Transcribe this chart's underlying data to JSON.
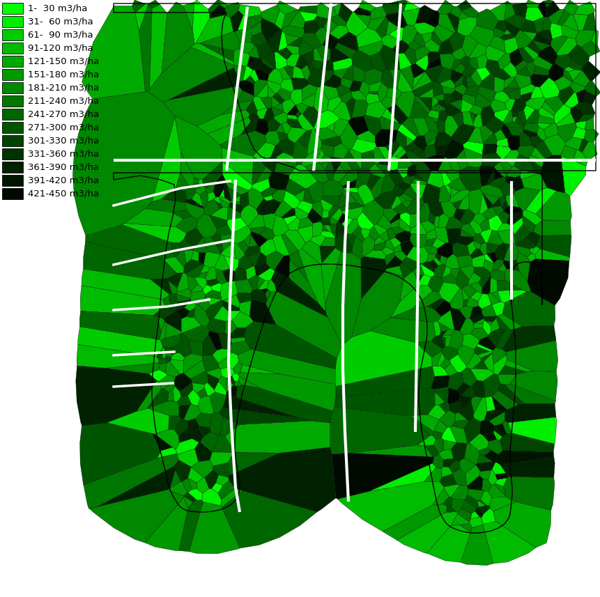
{
  "legend_labels": [
    "1-  30 m3/ha",
    "31-  60 m3/ha",
    "61-  90 m3/ha",
    "91-120 m3/ha",
    "121-150 m3/ha",
    "151-180 m3/ha",
    "181-210 m3/ha",
    "211-240 m3/ha",
    "241-270 m3/ha",
    "271-300 m3/ha",
    "301-330 m3/ha",
    "331-360 m3/ha",
    "361-390 m3/ha",
    "391-420 m3/ha",
    "421-450 m3/ha"
  ],
  "legend_colors": [
    "#00FF00",
    "#00EE00",
    "#00CC00",
    "#00BB00",
    "#00AA00",
    "#009900",
    "#008800",
    "#007700",
    "#006600",
    "#005500",
    "#004400",
    "#003300",
    "#002200",
    "#001500",
    "#000A00"
  ],
  "background_color": "#FFFFFF",
  "figure_width": 8.62,
  "figure_height": 8.57,
  "dpi": 100,
  "legend_fontsize": 9.5,
  "seed": 42
}
